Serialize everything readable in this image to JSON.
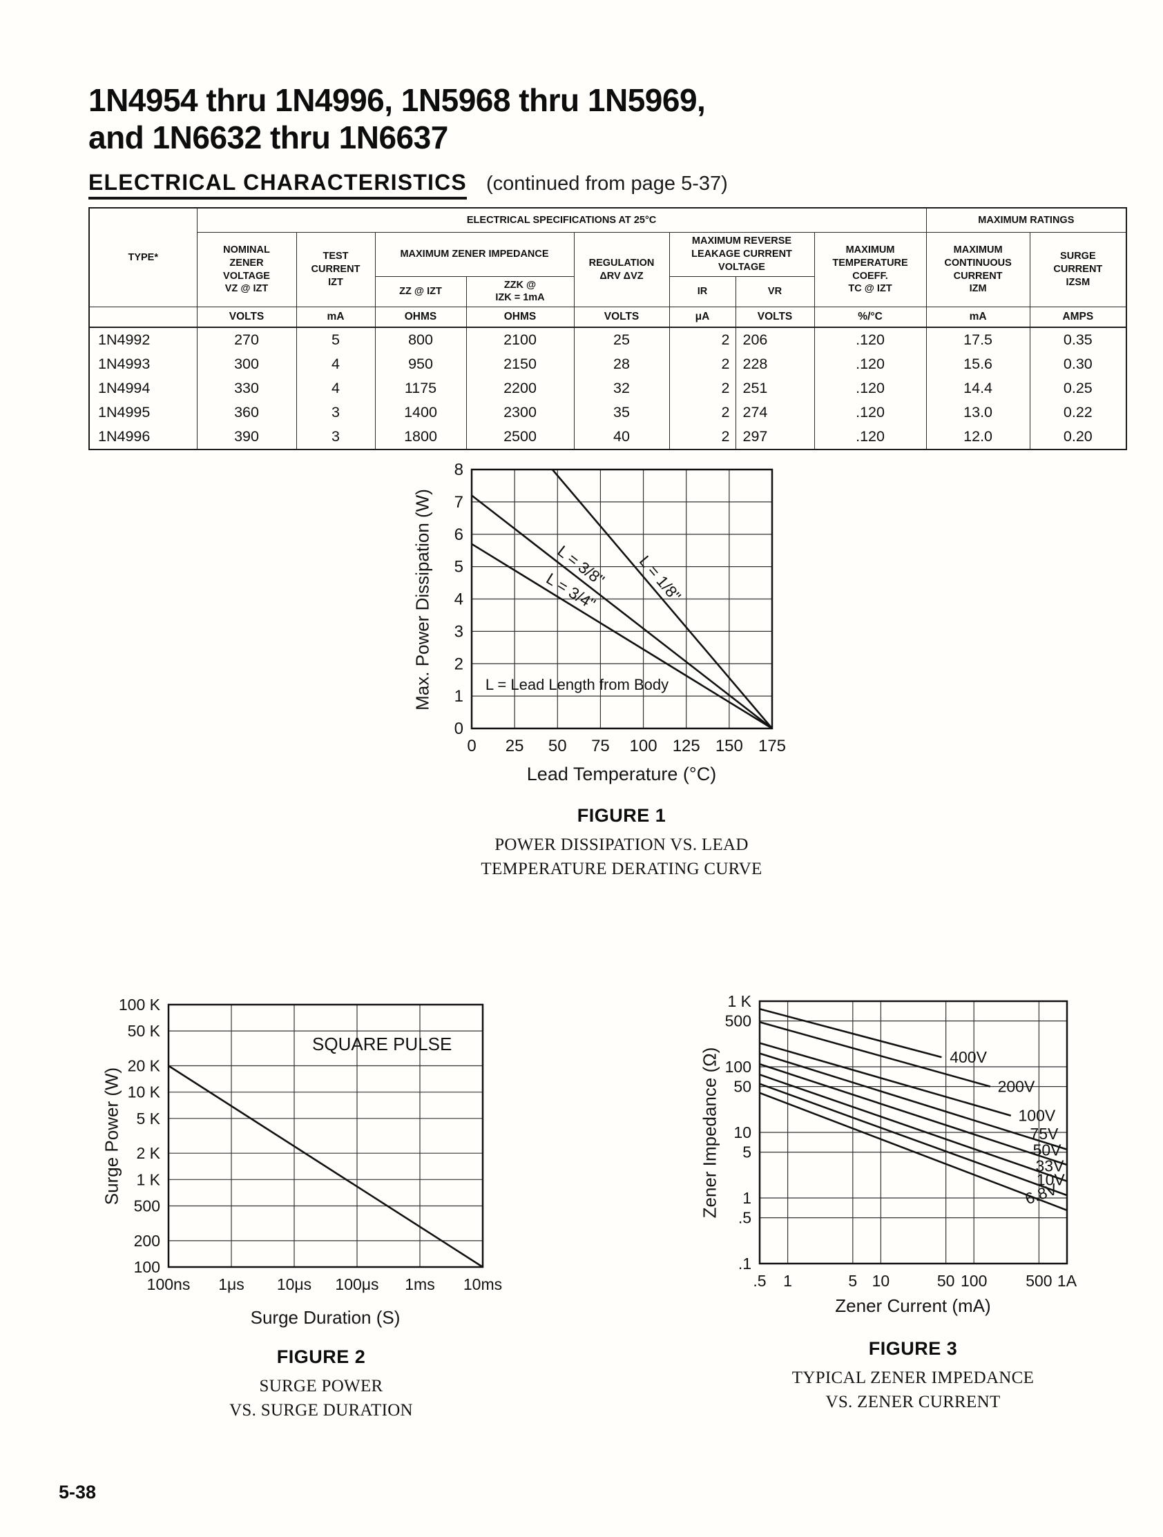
{
  "page": {
    "title_line1": "1N4954 thru 1N4996, 1N5968 thru 1N5969,",
    "title_line2": "and 1N6632 thru 1N6637",
    "section_heading": "ELECTRICAL CHARACTERISTICS",
    "section_note": "(continued from page 5-37)",
    "page_number": "5-38"
  },
  "table": {
    "group_headers": {
      "specs": "ELECTRICAL SPECIFICATIONS AT 25°C",
      "ratings": "MAXIMUM RATINGS"
    },
    "columns": {
      "type": "TYPE*",
      "nominal": "NOMINAL\nZENER\nVOLTAGE\nVZ @ IZT",
      "test_current": "TEST\nCURRENT\nIZT",
      "impedance_group": "MAXIMUM ZENER IMPEDANCE",
      "zz": "ZZ @ IZT",
      "zzk": "ZZK @\nIZK = 1mA",
      "regulation": "REGULATION\nΔRV ΔVZ",
      "leakage_group": "MAXIMUM REVERSE\nLEAKAGE CURRENT\nVOLTAGE",
      "ir": "IR",
      "vr": "VR",
      "temp_coeff": "MAXIMUM\nTEMPERATURE\nCOEFF.\nTC @ IZT",
      "continuous": "MAXIMUM\nCONTINUOUS\nCURRENT\nIZM",
      "surge": "SURGE\nCURRENT\nIZSM"
    },
    "units": [
      "",
      "VOLTS",
      "mA",
      "OHMS",
      "OHMS",
      "VOLTS",
      "μA",
      "VOLTS",
      "%/°C",
      "mA",
      "AMPS"
    ],
    "rows": [
      [
        "1N4992",
        "270",
        "5",
        "800",
        "2100",
        "25",
        "2",
        "206",
        ".120",
        "17.5",
        "0.35"
      ],
      [
        "1N4993",
        "300",
        "4",
        "950",
        "2150",
        "28",
        "2",
        "228",
        ".120",
        "15.6",
        "0.30"
      ],
      [
        "1N4994",
        "330",
        "4",
        "1175",
        "2200",
        "32",
        "2",
        "251",
        ".120",
        "14.4",
        "0.25"
      ],
      [
        "1N4995",
        "360",
        "3",
        "1400",
        "2300",
        "35",
        "2",
        "274",
        ".120",
        "13.0",
        "0.22"
      ],
      [
        "1N4996",
        "390",
        "3",
        "1800",
        "2500",
        "40",
        "2",
        "297",
        ".120",
        "12.0",
        "0.20"
      ]
    ]
  },
  "chart_data": [
    {
      "id": "figure1",
      "type": "line",
      "xscale": "linear",
      "yscale": "linear",
      "xlim": [
        0,
        175
      ],
      "ylim": [
        0,
        8
      ],
      "xlabel": "Lead Temperature (°C)",
      "ylabel": "Max. Power Dissipation (W)",
      "grid": true,
      "xticks": [
        {
          "v": 0,
          "label": "0"
        },
        {
          "v": 25,
          "label": "25"
        },
        {
          "v": 50,
          "label": "50"
        },
        {
          "v": 75,
          "label": "75"
        },
        {
          "v": 100,
          "label": "100"
        },
        {
          "v": 125,
          "label": "125"
        },
        {
          "v": 150,
          "label": "150"
        },
        {
          "v": 175,
          "label": "175"
        }
      ],
      "yticks": [
        {
          "v": 0,
          "label": "0"
        },
        {
          "v": 1,
          "label": "1"
        },
        {
          "v": 2,
          "label": "2"
        },
        {
          "v": 3,
          "label": "3"
        },
        {
          "v": 4,
          "label": "4"
        },
        {
          "v": 5,
          "label": "5"
        },
        {
          "v": 6,
          "label": "6"
        },
        {
          "v": 7,
          "label": "7"
        },
        {
          "v": 8,
          "label": "8"
        }
      ],
      "series": [
        {
          "name": "L = 1/8 inch lead",
          "label": "L = 1/8\"",
          "label_mode": "along",
          "label_frac": 0.45,
          "points": [
            [
              47,
              8
            ],
            [
              175,
              0
            ]
          ]
        },
        {
          "name": "L = 3/8 inch lead",
          "label": "L = 3/8\"",
          "label_mode": "along",
          "label_frac": 0.34,
          "points": [
            [
              0,
              7.2
            ],
            [
              175,
              0
            ]
          ]
        },
        {
          "name": "L = 3/4 inch lead",
          "label": "L = 3/4\"",
          "label_mode": "along",
          "label_frac": 0.31,
          "points": [
            [
              0,
              5.7
            ],
            [
              175,
              0
            ]
          ]
        }
      ],
      "annotations": [
        {
          "x": 8,
          "y": 1.2,
          "text": "L = Lead Length from Body",
          "anchor": "start",
          "size": 22
        }
      ],
      "figure_label": "FIGURE 1",
      "captions": [
        "POWER DISSIPATION VS. LEAD",
        "TEMPERATURE  DERATING CURVE"
      ]
    },
    {
      "id": "figure2",
      "type": "line",
      "xscale": "log",
      "yscale": "log",
      "xlim": [
        1e-07,
        0.01
      ],
      "ylim": [
        100,
        100000
      ],
      "xlabel": "Surge Duration (S)",
      "ylabel": "Surge Power (W)",
      "grid": true,
      "xticks": [
        {
          "v": 1e-07,
          "label": "100ns"
        },
        {
          "v": 1e-06,
          "label": "1μs"
        },
        {
          "v": 1e-05,
          "label": "10μs"
        },
        {
          "v": 0.0001,
          "label": "100μs"
        },
        {
          "v": 0.001,
          "label": "1ms"
        },
        {
          "v": 0.01,
          "label": "10ms"
        }
      ],
      "yticks": [
        {
          "v": 100,
          "label": "100"
        },
        {
          "v": 200,
          "label": "200"
        },
        {
          "v": 500,
          "label": "500"
        },
        {
          "v": 1000,
          "label": "1 K"
        },
        {
          "v": 2000,
          "label": "2 K"
        },
        {
          "v": 5000,
          "label": "5 K"
        },
        {
          "v": 10000,
          "label": "10 K"
        },
        {
          "v": 20000,
          "label": "20 K"
        },
        {
          "v": 50000,
          "label": "50 K"
        },
        {
          "v": 100000,
          "label": "100 K"
        }
      ],
      "series": [
        {
          "name": "square pulse surge capability",
          "points": [
            [
              1e-07,
              20000
            ],
            [
              0.01,
              100
            ]
          ]
        }
      ],
      "annotations": [
        {
          "x": 0.00025,
          "y": 30000,
          "text": "SQUARE PULSE",
          "anchor": "middle",
          "size": 26
        }
      ],
      "figure_label": "FIGURE 2",
      "captions": [
        "SURGE POWER",
        "VS. SURGE DURATION"
      ]
    },
    {
      "id": "figure3",
      "type": "line",
      "xscale": "log",
      "yscale": "log",
      "xlim": [
        0.5,
        1000
      ],
      "ylim": [
        0.1,
        1000
      ],
      "xlabel": "Zener Current (mA)",
      "ylabel": "Zener Impedance (Ω)",
      "grid": true,
      "xticks": [
        {
          "v": 0.5,
          "label": ".5"
        },
        {
          "v": 1,
          "label": "1"
        },
        {
          "v": 5,
          "label": "5"
        },
        {
          "v": 10,
          "label": "10"
        },
        {
          "v": 50,
          "label": "50"
        },
        {
          "v": 100,
          "label": "100"
        },
        {
          "v": 500,
          "label": "500"
        },
        {
          "v": 1000,
          "label": "1A"
        }
      ],
      "yticks": [
        {
          "v": 0.1,
          "label": ".1"
        },
        {
          "v": 0.5,
          "label": ".5"
        },
        {
          "v": 1,
          "label": "1"
        },
        {
          "v": 5,
          "label": "5"
        },
        {
          "v": 10,
          "label": "10"
        },
        {
          "v": 50,
          "label": "50"
        },
        {
          "v": 100,
          "label": "100"
        },
        {
          "v": 500,
          "label": "500"
        },
        {
          "v": 1000,
          "label": "1 K"
        }
      ],
      "series": [
        {
          "name": "400V",
          "label": "400V",
          "label_x": 55,
          "label_y": 140,
          "points": [
            [
              0.5,
              760
            ],
            [
              45,
              140
            ]
          ]
        },
        {
          "name": "200V",
          "label": "200V",
          "label_x": 180,
          "label_y": 50,
          "points": [
            [
              0.5,
              480
            ],
            [
              150,
              50
            ]
          ]
        },
        {
          "name": "100V",
          "label": "100V",
          "label_x": 300,
          "label_y": 18,
          "points": [
            [
              0.5,
              230
            ],
            [
              250,
              18
            ]
          ]
        },
        {
          "name": "75V",
          "label": "75V",
          "label_x": 400,
          "label_y": 9.5,
          "points": [
            [
              0.5,
              160
            ],
            [
              1000,
              5.5
            ]
          ]
        },
        {
          "name": "50V",
          "label": "50V",
          "label_x": 430,
          "label_y": 5.4,
          "points": [
            [
              0.5,
              110
            ],
            [
              1000,
              3.2
            ]
          ]
        },
        {
          "name": "33V",
          "label": "33V",
          "label_x": 460,
          "label_y": 3.1,
          "points": [
            [
              0.5,
              76
            ],
            [
              1000,
              1.8
            ]
          ]
        },
        {
          "name": "10V",
          "label": "10V",
          "label_x": 470,
          "label_y": 1.9,
          "points": [
            [
              0.5,
              55
            ],
            [
              1000,
              1.1
            ]
          ]
        },
        {
          "name": "6.8V",
          "label": "6.8V",
          "label_x": 360,
          "label_y": 0.95,
          "label_angle": -20,
          "points": [
            [
              0.5,
              40
            ],
            [
              1000,
              0.65
            ]
          ]
        }
      ],
      "annotations": [],
      "figure_label": "FIGURE 3",
      "captions": [
        "TYPICAL ZENER IMPEDANCE",
        "VS. ZENER CURRENT"
      ]
    }
  ]
}
